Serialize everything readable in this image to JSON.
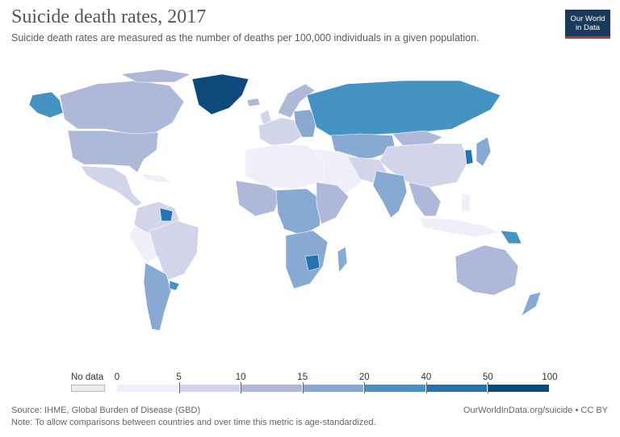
{
  "header": {
    "title": "Suicide death rates, 2017",
    "subtitle": "Suicide death rates are measured as the number of deaths per 100,000 individuals in a given population."
  },
  "logo": {
    "line1": "Our World",
    "line2": "in Data"
  },
  "legend": {
    "no_data_label": "No data",
    "ticks": [
      "0",
      "5",
      "10",
      "15",
      "20",
      "40",
      "50",
      "100"
    ],
    "colors": [
      "#eeeff8",
      "#d2d4ea",
      "#aeb9d9",
      "#87a9d2",
      "#4593c3",
      "#2374b0",
      "#0d4a7b"
    ],
    "no_data_color": "#ececec"
  },
  "footer": {
    "source": "Source: IHME, Global Burden of Disease (GBD)",
    "note": "Note: To allow comparisons between countries and over time this metric is age-standardized.",
    "url": "OurWorldInData.org/suicide • CC BY"
  }
}
